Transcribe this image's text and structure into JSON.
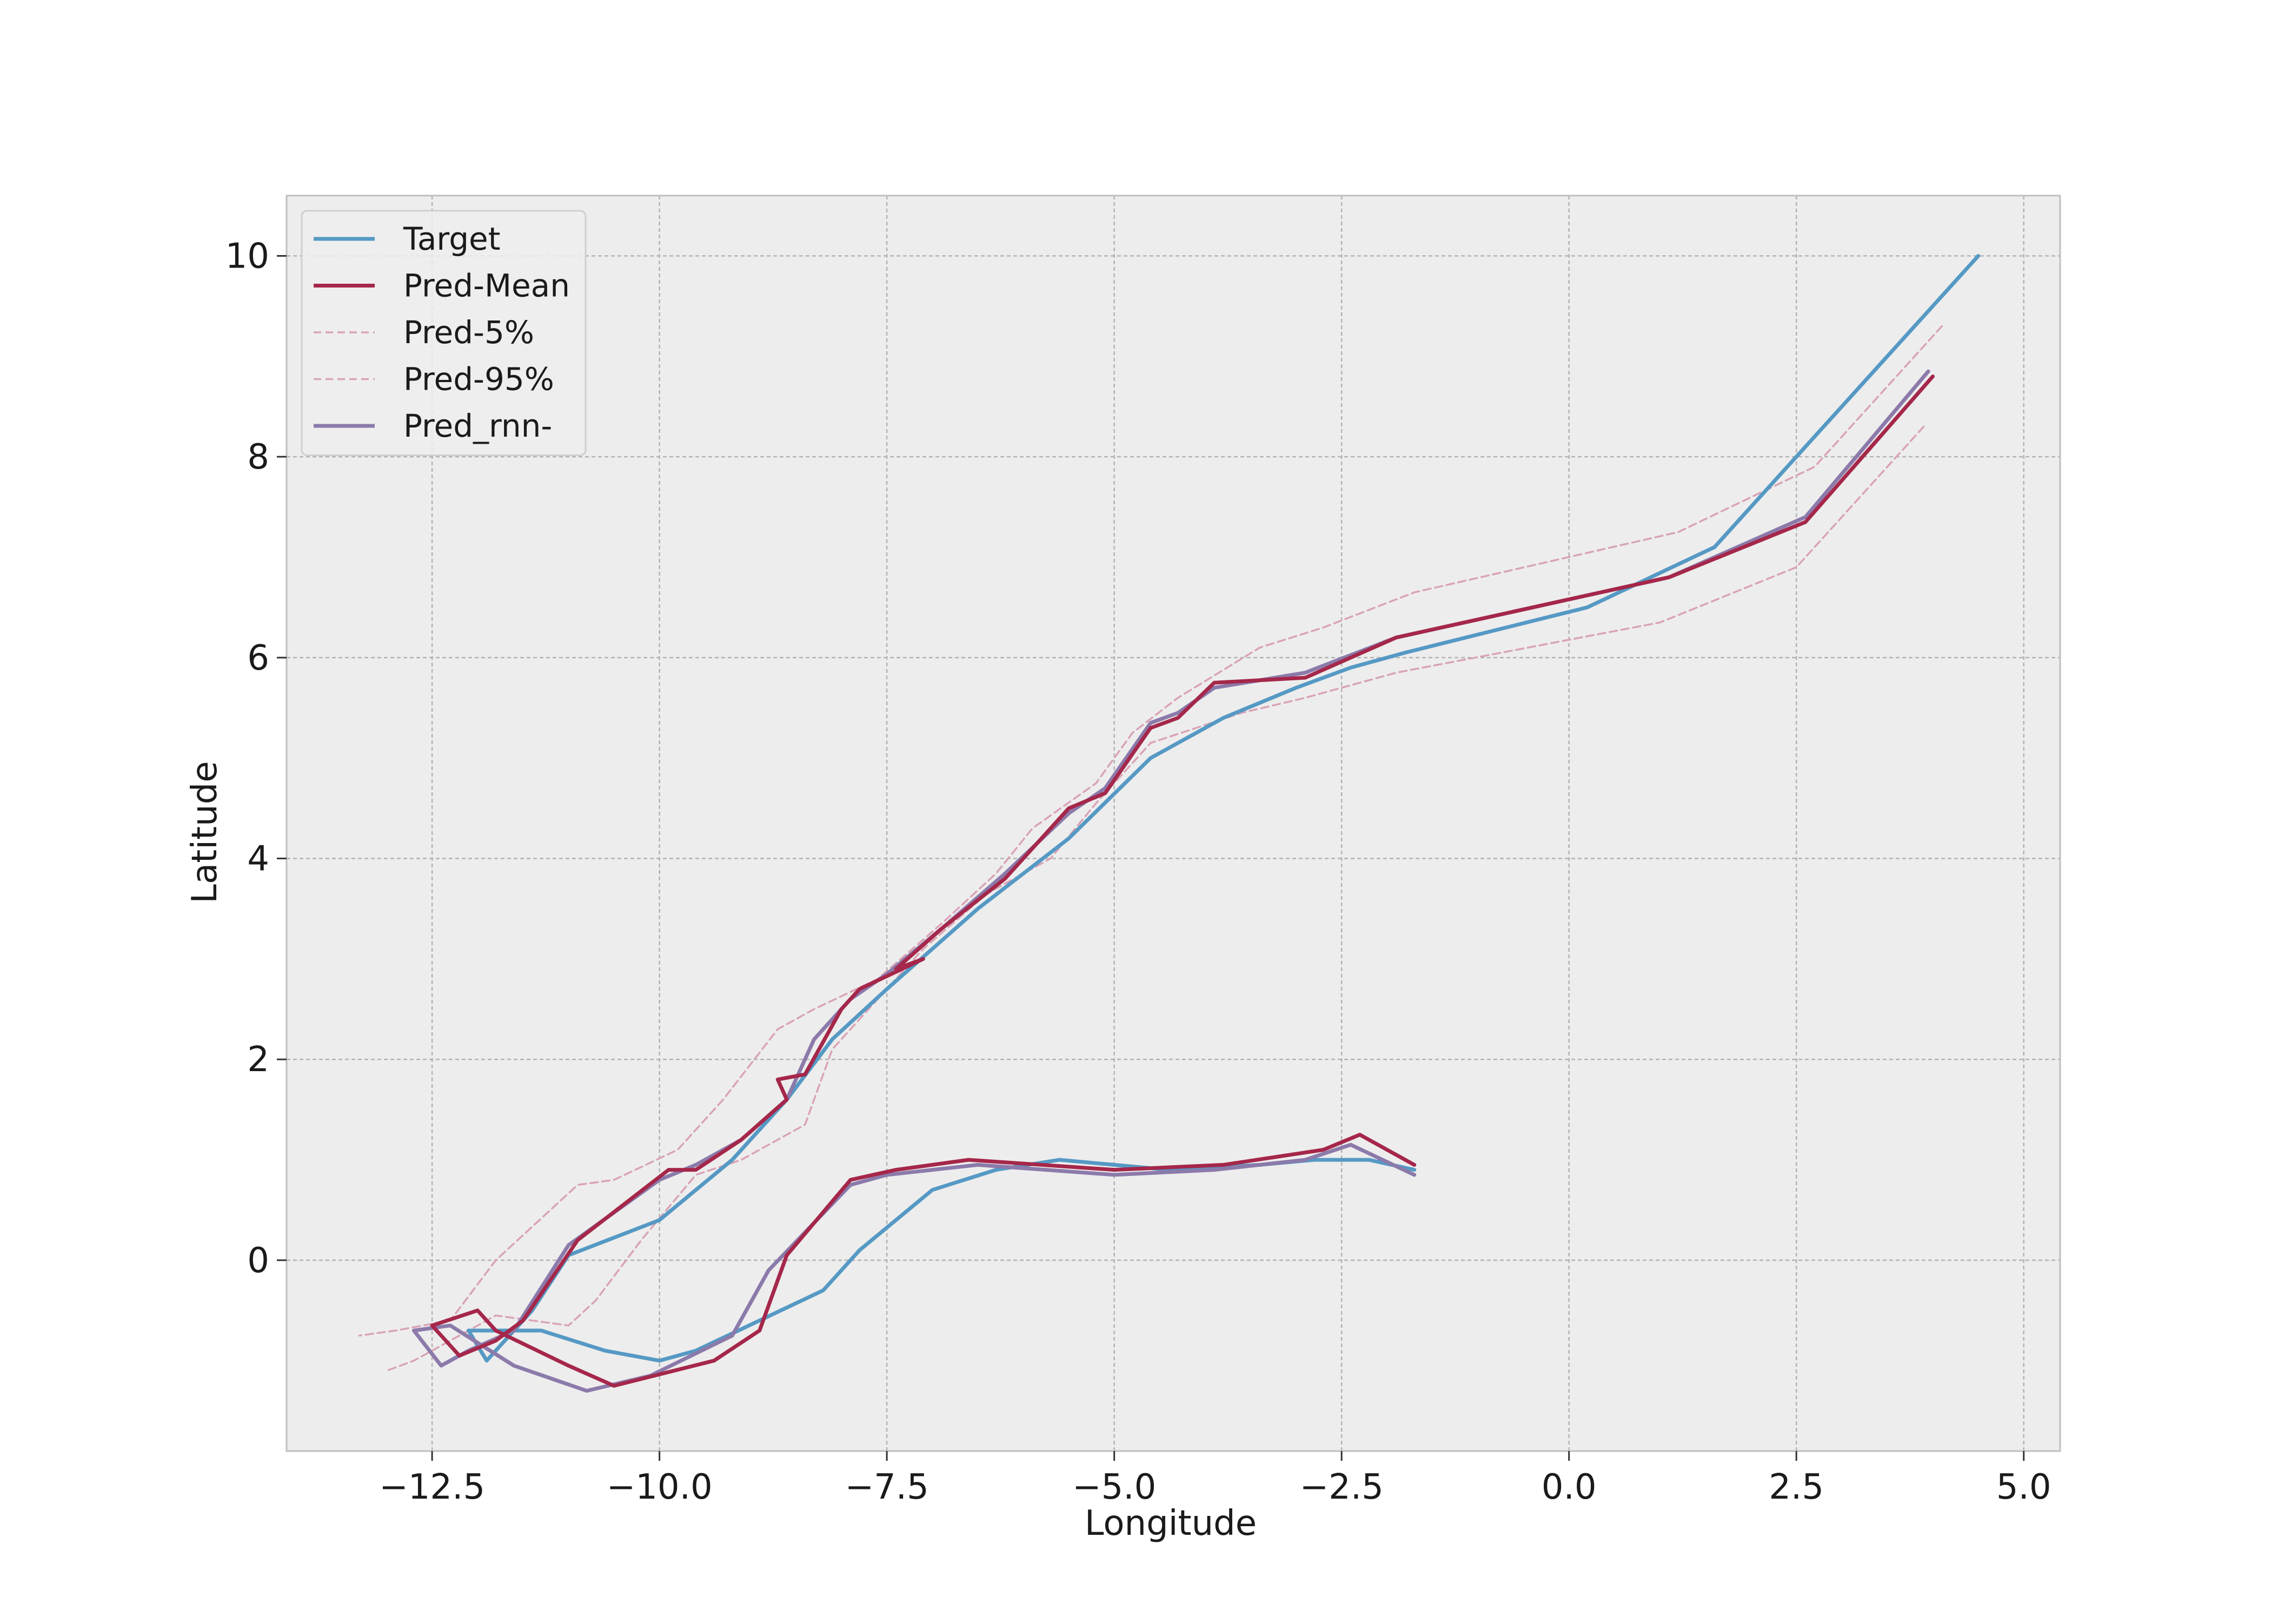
{
  "chart_data": {
    "type": "line",
    "title": "",
    "xlabel": "Longitude",
    "ylabel": "Latitude",
    "xlim": [
      -14.1,
      5.4
    ],
    "ylim": [
      -1.9,
      10.6
    ],
    "xticks": [
      -12.5,
      -10.0,
      -7.5,
      -5.0,
      -2.5,
      0.0,
      2.5,
      5.0
    ],
    "xtick_labels": [
      "−12.5",
      "−10.0",
      "−7.5",
      "−5.0",
      "−2.5",
      "0.0",
      "2.5",
      "5.0"
    ],
    "yticks": [
      0,
      2,
      4,
      6,
      8,
      10
    ],
    "ytick_labels": [
      "0",
      "2",
      "4",
      "6",
      "8",
      "10"
    ],
    "grid": true,
    "legend_position": "upper-left",
    "series": [
      {
        "name": "Target",
        "color": "#5599c4",
        "style": "solid",
        "points": [
          [
            4.5,
            10.0
          ],
          [
            1.6,
            7.1
          ],
          [
            0.2,
            6.5
          ],
          [
            -1.8,
            6.05
          ],
          [
            -2.4,
            5.9
          ],
          [
            -3.0,
            5.7
          ],
          [
            -3.8,
            5.4
          ],
          [
            -4.6,
            5.0
          ],
          [
            -5.5,
            4.2
          ],
          [
            -6.5,
            3.5
          ],
          [
            -7.5,
            2.7
          ],
          [
            -8.1,
            2.2
          ],
          [
            -8.6,
            1.6
          ],
          [
            -9.2,
            1.0
          ],
          [
            -10.0,
            0.4
          ],
          [
            -11.0,
            0.05
          ],
          [
            -11.4,
            -0.5
          ],
          [
            -11.9,
            -1.0
          ],
          [
            -12.1,
            -0.7
          ],
          [
            -11.3,
            -0.7
          ],
          [
            -10.6,
            -0.9
          ],
          [
            -10.0,
            -1.0
          ],
          [
            -9.6,
            -0.9
          ],
          [
            -8.9,
            -0.6
          ],
          [
            -8.2,
            -0.3
          ],
          [
            -7.8,
            0.1
          ],
          [
            -7.0,
            0.7
          ],
          [
            -6.3,
            0.9
          ],
          [
            -5.6,
            1.0
          ],
          [
            -5.0,
            0.95
          ],
          [
            -4.4,
            0.9
          ],
          [
            -3.4,
            0.95
          ],
          [
            -2.8,
            1.0
          ],
          [
            -2.2,
            1.0
          ],
          [
            -1.7,
            0.9
          ]
        ]
      },
      {
        "name": "Pred-Mean",
        "color": "#a5274a",
        "style": "solid",
        "points": [
          [
            4.0,
            8.8
          ],
          [
            2.6,
            7.35
          ],
          [
            1.1,
            6.8
          ],
          [
            -1.9,
            6.2
          ],
          [
            -2.9,
            5.8
          ],
          [
            -3.9,
            5.75
          ],
          [
            -4.3,
            5.4
          ],
          [
            -4.6,
            5.3
          ],
          [
            -5.1,
            4.65
          ],
          [
            -5.5,
            4.5
          ],
          [
            -6.2,
            3.8
          ],
          [
            -6.9,
            3.3
          ],
          [
            -7.4,
            2.9
          ],
          [
            -7.1,
            3.0
          ],
          [
            -7.8,
            2.7
          ],
          [
            -8.0,
            2.5
          ],
          [
            -8.4,
            1.85
          ],
          [
            -8.7,
            1.8
          ],
          [
            -8.6,
            1.6
          ],
          [
            -9.1,
            1.2
          ],
          [
            -9.6,
            0.9
          ],
          [
            -9.9,
            0.9
          ],
          [
            -10.9,
            0.2
          ],
          [
            -11.5,
            -0.6
          ],
          [
            -11.8,
            -0.8
          ],
          [
            -12.2,
            -0.95
          ],
          [
            -12.5,
            -0.65
          ],
          [
            -12.0,
            -0.5
          ],
          [
            -11.8,
            -0.7
          ],
          [
            -11.0,
            -1.05
          ],
          [
            -10.5,
            -1.25
          ],
          [
            -9.4,
            -1.0
          ],
          [
            -8.9,
            -0.7
          ],
          [
            -8.6,
            0.05
          ],
          [
            -7.9,
            0.8
          ],
          [
            -7.4,
            0.9
          ],
          [
            -6.6,
            1.0
          ],
          [
            -5.0,
            0.9
          ],
          [
            -3.8,
            0.95
          ],
          [
            -2.7,
            1.1
          ],
          [
            -2.3,
            1.25
          ],
          [
            -1.7,
            0.95
          ]
        ]
      },
      {
        "name": "Pred-5%",
        "color": "#d9a3b6",
        "style": "dashed",
        "points": [
          [
            4.1,
            9.3
          ],
          [
            2.7,
            7.9
          ],
          [
            1.2,
            7.25
          ],
          [
            -1.7,
            6.65
          ],
          [
            -2.7,
            6.3
          ],
          [
            -3.4,
            6.1
          ],
          [
            -4.3,
            5.6
          ],
          [
            -4.8,
            5.25
          ],
          [
            -5.2,
            4.75
          ],
          [
            -5.9,
            4.3
          ],
          [
            -6.3,
            3.85
          ],
          [
            -6.9,
            3.35
          ],
          [
            -7.6,
            2.8
          ],
          [
            -8.3,
            2.5
          ],
          [
            -8.7,
            2.3
          ],
          [
            -9.3,
            1.6
          ],
          [
            -9.8,
            1.1
          ],
          [
            -10.5,
            0.8
          ],
          [
            -10.9,
            0.75
          ],
          [
            -11.8,
            0.0
          ],
          [
            -12.3,
            -0.6
          ],
          [
            -12.9,
            -0.7
          ],
          [
            -13.3,
            -0.75
          ]
        ]
      },
      {
        "name": "Pred-95%",
        "color": "#d9a3b6",
        "style": "dashed",
        "points": [
          [
            3.9,
            8.3
          ],
          [
            2.5,
            6.9
          ],
          [
            1.0,
            6.35
          ],
          [
            -1.9,
            5.85
          ],
          [
            -2.9,
            5.6
          ],
          [
            -3.6,
            5.45
          ],
          [
            -4.6,
            5.15
          ],
          [
            -5.2,
            4.55
          ],
          [
            -5.7,
            4.0
          ],
          [
            -6.4,
            3.65
          ],
          [
            -7.1,
            3.1
          ],
          [
            -7.6,
            2.6
          ],
          [
            -8.1,
            2.1
          ],
          [
            -8.4,
            1.35
          ],
          [
            -9.1,
            1.0
          ],
          [
            -9.6,
            0.85
          ],
          [
            -10.2,
            0.2
          ],
          [
            -10.7,
            -0.4
          ],
          [
            -11.0,
            -0.65
          ],
          [
            -11.8,
            -0.55
          ],
          [
            -12.2,
            -0.75
          ],
          [
            -12.7,
            -1.0
          ],
          [
            -13.0,
            -1.1
          ]
        ]
      },
      {
        "name": "Pred_rnn-",
        "color": "#8b7aaa",
        "style": "solid",
        "points": [
          [
            3.95,
            8.85
          ],
          [
            2.6,
            7.4
          ],
          [
            1.1,
            6.8
          ],
          [
            -1.9,
            6.2
          ],
          [
            -2.9,
            5.85
          ],
          [
            -3.9,
            5.7
          ],
          [
            -4.3,
            5.45
          ],
          [
            -4.6,
            5.35
          ],
          [
            -5.1,
            4.7
          ],
          [
            -5.5,
            4.45
          ],
          [
            -6.2,
            3.85
          ],
          [
            -6.9,
            3.3
          ],
          [
            -7.5,
            2.85
          ],
          [
            -7.9,
            2.6
          ],
          [
            -8.3,
            2.2
          ],
          [
            -8.6,
            1.6
          ],
          [
            -9.1,
            1.2
          ],
          [
            -9.6,
            0.95
          ],
          [
            -10.0,
            0.8
          ],
          [
            -11.0,
            0.15
          ],
          [
            -11.6,
            -0.7
          ],
          [
            -12.1,
            -0.9
          ],
          [
            -12.4,
            -1.05
          ],
          [
            -12.7,
            -0.7
          ],
          [
            -12.3,
            -0.65
          ],
          [
            -11.6,
            -1.05
          ],
          [
            -10.8,
            -1.3
          ],
          [
            -10.1,
            -1.15
          ],
          [
            -9.2,
            -0.75
          ],
          [
            -8.8,
            -0.1
          ],
          [
            -7.9,
            0.75
          ],
          [
            -7.5,
            0.85
          ],
          [
            -6.5,
            0.95
          ],
          [
            -5.0,
            0.85
          ],
          [
            -3.9,
            0.9
          ],
          [
            -2.9,
            1.0
          ],
          [
            -2.4,
            1.15
          ],
          [
            -1.7,
            0.85
          ]
        ]
      }
    ]
  }
}
